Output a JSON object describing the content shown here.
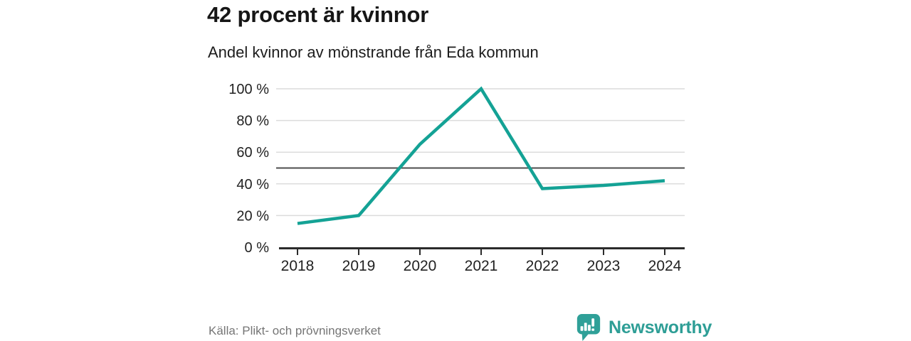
{
  "header": {
    "title": "42 procent är kvinnor",
    "subtitle": "Andel kvinnor av mönstrande från Eda kommun"
  },
  "chart_data": {
    "type": "line",
    "title": "42 procent är kvinnor",
    "subtitle": "Andel kvinnor av mönstrande från Eda kommun",
    "categories": [
      "2018",
      "2019",
      "2020",
      "2021",
      "2022",
      "2023",
      "2024"
    ],
    "series": [
      {
        "name": "Andel kvinnor av mönstrande",
        "values": [
          15,
          20,
          65,
          100,
          37,
          39,
          42
        ]
      }
    ],
    "xlabel": "",
    "ylabel": "",
    "ylim": [
      0,
      100
    ],
    "yticks": [
      0,
      20,
      40,
      60,
      80,
      100
    ],
    "ytick_suffix": " %",
    "grid": true,
    "legend": "none",
    "reference_line": 50,
    "colors": {
      "line": "#14A295",
      "gridline": "#DCDCDC",
      "reference_line": "#4D4D4D",
      "axis": "#2B2B2B",
      "tick_label": "#222222"
    }
  },
  "footer": {
    "source": "Källa: Plikt- och prövningsverket",
    "brand": "Newsworthy",
    "brand_color": "#2E9E96",
    "logo_icon": "newsworthy-speech-bubble-bar-chart"
  }
}
